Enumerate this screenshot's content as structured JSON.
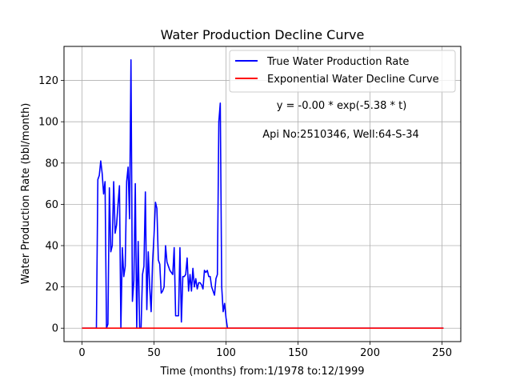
{
  "chart_data": {
    "type": "line",
    "title": "Water Production Decline Curve",
    "xlabel": "Time (months) from:1/1978 to:12/1999",
    "ylabel": "Water Production Rate (bbl/month)",
    "xlim": [
      -12.5,
      263
    ],
    "ylim": [
      -6.5,
      136.5
    ],
    "xticks": [
      0,
      50,
      100,
      150,
      200,
      250
    ],
    "yticks": [
      0,
      20,
      40,
      60,
      80,
      100,
      120
    ],
    "grid": true,
    "legend_position": "top-right",
    "annotations": [
      "y = -0.00 * exp(-5.38 * t)",
      "Api No:2510346, Well:64-S-34"
    ],
    "series": [
      {
        "name": "True Water Production Rate",
        "color": "#0000ff",
        "x": [
          0,
          10,
          11,
          12,
          13,
          14,
          15,
          16,
          17,
          18,
          19,
          20,
          21,
          22,
          23,
          24,
          25,
          26,
          27,
          28,
          29,
          30,
          31,
          32,
          33,
          34,
          35,
          36,
          37,
          38,
          39,
          40,
          41,
          42,
          43,
          44,
          45,
          46,
          47,
          48,
          49,
          50,
          51,
          52,
          53,
          54,
          55,
          56,
          57,
          58,
          59,
          60,
          61,
          62,
          63,
          64,
          65,
          66,
          67,
          68,
          69,
          70,
          71,
          72,
          73,
          74,
          75,
          76,
          77,
          78,
          79,
          80,
          81,
          82,
          83,
          84,
          85,
          86,
          87,
          88,
          89,
          90,
          91,
          92,
          93,
          94,
          95,
          96,
          97,
          98,
          99,
          100,
          101,
          102,
          103,
          104,
          150,
          200,
          251
        ],
        "y": [
          0,
          0,
          72,
          74,
          81,
          75,
          65,
          71,
          0,
          2,
          68,
          37,
          40,
          71,
          46,
          50,
          60,
          69,
          0,
          39,
          25,
          30,
          71,
          78,
          53,
          130,
          13,
          23,
          70,
          0,
          42,
          0,
          0,
          26,
          30,
          66,
          9,
          37,
          20,
          8,
          32,
          45,
          61,
          58,
          33,
          31,
          17,
          18,
          20,
          40,
          32,
          30,
          28,
          27,
          26,
          39,
          6,
          6,
          6,
          39,
          3,
          25,
          25,
          26,
          34,
          18,
          26,
          18,
          29,
          20,
          24,
          19,
          22,
          22,
          21,
          19,
          28,
          27,
          28,
          25,
          25,
          20,
          18,
          16,
          24,
          26,
          100,
          109,
          20,
          8,
          12,
          5,
          0,
          0,
          0,
          0,
          0,
          0,
          0
        ]
      },
      {
        "name": "Exponential Water Decline Curve",
        "color": "#ff0000",
        "x": [
          0,
          251
        ],
        "y": [
          0,
          0
        ]
      }
    ]
  }
}
